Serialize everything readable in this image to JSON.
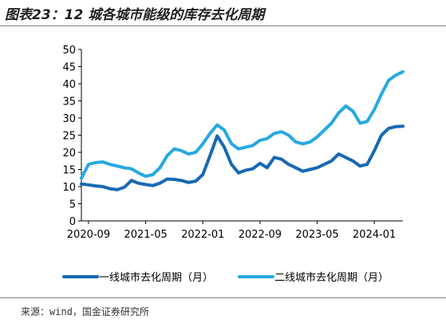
{
  "title": "图表23：12 城各城市能级的库存去化周期",
  "source": "来源：wind，国金证券研究所",
  "colors": {
    "series_1": "#1769b3",
    "series_2": "#27a9e1",
    "axis": "#000000",
    "rules": "#7f7f7f"
  },
  "chart_data": {
    "type": "line",
    "title": "",
    "xlabel": "",
    "ylabel": "",
    "ylim": [
      0,
      50
    ],
    "yticks": [
      0,
      5,
      10,
      15,
      20,
      25,
      30,
      35,
      40,
      45,
      50
    ],
    "xlim": [
      "2020-08",
      "2024-05"
    ],
    "xticks": [
      "2020-09",
      "2021-05",
      "2022-01",
      "2022-09",
      "2023-05",
      "2024-01"
    ],
    "grid": false,
    "legend_position": "bottom",
    "x": [
      "2020-08",
      "2020-09",
      "2020-10",
      "2020-11",
      "2020-12",
      "2021-01",
      "2021-02",
      "2021-03",
      "2021-04",
      "2021-05",
      "2021-06",
      "2021-07",
      "2021-08",
      "2021-09",
      "2021-10",
      "2021-11",
      "2021-12",
      "2022-01",
      "2022-02",
      "2022-03",
      "2022-04",
      "2022-05",
      "2022-06",
      "2022-07",
      "2022-08",
      "2022-09",
      "2022-10",
      "2022-11",
      "2022-12",
      "2023-01",
      "2023-02",
      "2023-03",
      "2023-04",
      "2023-05",
      "2023-06",
      "2023-07",
      "2023-08",
      "2023-09",
      "2023-10",
      "2023-11",
      "2023-12",
      "2024-01",
      "2024-02",
      "2024-03",
      "2024-04",
      "2024-05"
    ],
    "series": [
      {
        "name": "一线城市去化周期（月）",
        "values": [
          10.8,
          10.5,
          10.2,
          10.0,
          9.4,
          9.1,
          9.8,
          11.8,
          11.0,
          10.6,
          10.3,
          11.0,
          12.2,
          12.1,
          11.8,
          11.2,
          11.6,
          13.5,
          19.0,
          24.8,
          21.5,
          16.5,
          14.0,
          14.8,
          15.2,
          16.8,
          15.5,
          18.5,
          18.0,
          16.5,
          15.5,
          14.5,
          15.0,
          15.5,
          16.5,
          17.5,
          19.5,
          18.5,
          17.5,
          16.0,
          16.5,
          20.5,
          25.0,
          27.0,
          27.5,
          27.6
        ]
      },
      {
        "name": "二线城市去化周期（月）",
        "values": [
          12.5,
          16.5,
          17.0,
          17.2,
          16.5,
          16.0,
          15.5,
          15.2,
          14.0,
          13.0,
          13.5,
          15.5,
          19.0,
          21.0,
          20.5,
          19.5,
          20.0,
          22.5,
          25.5,
          28.0,
          26.5,
          22.5,
          21.0,
          21.5,
          22.0,
          23.5,
          24.0,
          25.5,
          26.0,
          25.0,
          23.0,
          22.5,
          23.0,
          24.5,
          26.5,
          28.5,
          31.5,
          33.5,
          32.0,
          28.5,
          29.0,
          32.5,
          37.0,
          41.0,
          42.5,
          43.5
        ]
      }
    ]
  }
}
